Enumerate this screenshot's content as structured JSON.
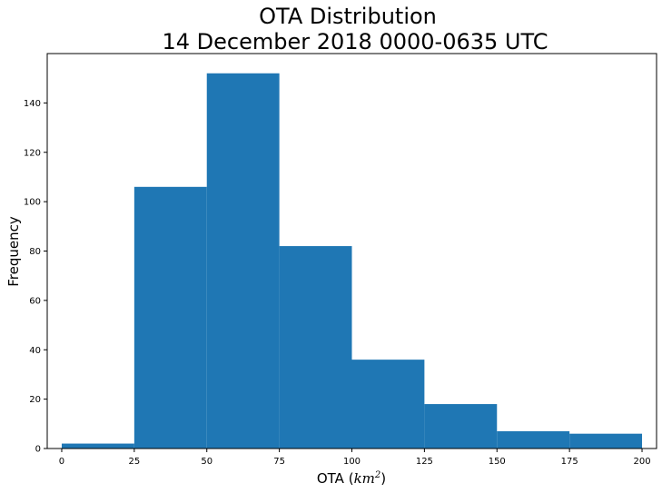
{
  "chart_data": {
    "type": "bar",
    "title_line1": "OTA Distribution",
    "title_line2": "14 December 2018 0000-0635 UTC",
    "xlabel_prefix": "OTA (",
    "xlabel_unit": "km",
    "xlabel_exp": "2",
    "xlabel_suffix": ")",
    "ylabel": "Frequency",
    "xlim": [
      -5,
      205
    ],
    "ylim": [
      0,
      160
    ],
    "xticks": [
      0,
      25,
      50,
      75,
      100,
      125,
      150,
      175,
      200
    ],
    "yticks": [
      0,
      20,
      40,
      60,
      80,
      100,
      120,
      140
    ],
    "bin_edges": [
      0,
      25,
      50,
      75,
      100,
      125,
      150,
      175,
      200
    ],
    "values": [
      2,
      106,
      152,
      82,
      36,
      18,
      7,
      6
    ],
    "bar_color": "#1f77b4",
    "grid": false,
    "legend": "none"
  }
}
